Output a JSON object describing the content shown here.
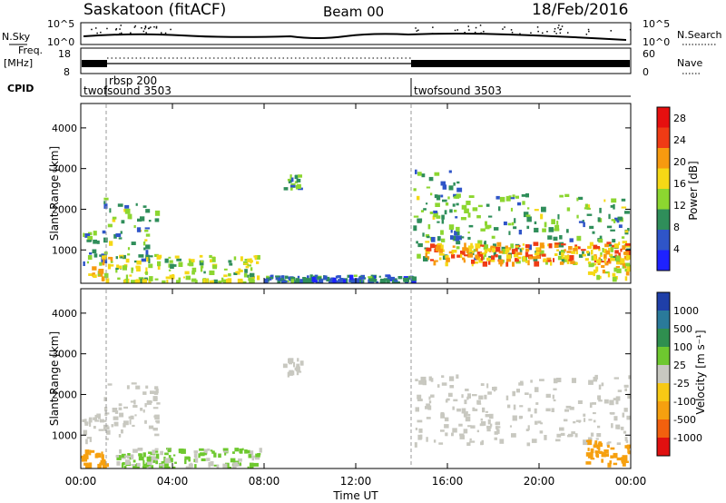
{
  "header": {
    "station": "Saskatoon (fitACF)",
    "beam": "Beam 00",
    "date": "18/Feb/2016"
  },
  "top_panels": {
    "nsky_label": "N.Sky",
    "nsky_ticks": [
      "10^5",
      "10^0"
    ],
    "nsearch_label": "N.Search",
    "freq_label_1": "Freq.",
    "freq_label_2": "[MHz]",
    "freq_ticks": [
      "18",
      "8"
    ],
    "nave_ticks": [
      "60",
      "0"
    ],
    "nave_label": "Nave",
    "cpid_label": "CPID",
    "cpid_entries": [
      {
        "name": "rbsp 200",
        "start_hour": 1.05
      },
      {
        "name": "twofsound 3503",
        "start_hour": 0.0
      },
      {
        "name": "twofsound 3503",
        "start_hour": 14.5
      }
    ]
  },
  "chart_data": [
    {
      "type": "heatmap",
      "panel": "power",
      "ylabel": "Slant Range [km]",
      "ylim": [
        180,
        4600
      ],
      "yticks": [
        "1000",
        "2000",
        "3000",
        "4000"
      ],
      "xlim": [
        0,
        24
      ],
      "colorbar_label": "Power [dB]",
      "colorbar_ticks": [
        "4",
        "8",
        "12",
        "16",
        "20",
        "24",
        "28"
      ],
      "colorbar_range": [
        0,
        30
      ],
      "colors": [
        "#1e22ff",
        "#2f55c8",
        "#2f8e5a",
        "#8cd630",
        "#f5d816",
        "#f79a0f",
        "#ef3b15",
        "#e60f0f"
      ],
      "echo_regions": [
        {
          "x": [
            0.0,
            1.0
          ],
          "y": [
            600,
            1500
          ],
          "value": 10
        },
        {
          "x": [
            0.9,
            3.3
          ],
          "y": [
            700,
            2300
          ],
          "value": 12
        },
        {
          "x": [
            0.3,
            1.3
          ],
          "y": [
            200,
            900
          ],
          "value": 18
        },
        {
          "x": [
            1.5,
            7.8
          ],
          "y": [
            200,
            900
          ],
          "value": 15
        },
        {
          "x": [
            8.8,
            9.6
          ],
          "y": [
            2500,
            2900
          ],
          "value": 10
        },
        {
          "x": [
            8.0,
            14.5
          ],
          "y": [
            200,
            400
          ],
          "value": 8
        },
        {
          "x": [
            14.5,
            16.5
          ],
          "y": [
            1200,
            3000
          ],
          "value": 9
        },
        {
          "x": [
            14.5,
            24.0
          ],
          "y": [
            700,
            2400
          ],
          "value": 12
        },
        {
          "x": [
            15.0,
            24.0
          ],
          "y": [
            700,
            1200
          ],
          "value": 22
        },
        {
          "x": [
            22.0,
            24.0
          ],
          "y": [
            300,
            900
          ],
          "value": 18
        }
      ]
    },
    {
      "type": "heatmap",
      "panel": "velocity",
      "ylabel": "Slant Range [km]",
      "xlabel": "Time UT",
      "ylim": [
        180,
        4600
      ],
      "yticks": [
        "1000",
        "2000",
        "3000",
        "4000"
      ],
      "xlim": [
        0,
        24
      ],
      "xticks": [
        "00:00",
        "04:00",
        "08:00",
        "12:00",
        "16:00",
        "20:00",
        "00:00"
      ],
      "colorbar_label": "Velocity [m s⁻¹]",
      "colorbar_ticks": [
        "1000",
        "500",
        "100",
        "25",
        "-25",
        "-100",
        "-500",
        "-1000"
      ],
      "colors": [
        "#1f3fa8",
        "#2a7a9a",
        "#2f8f4f",
        "#6ec82f",
        "#c8c8c0",
        "#f7c915",
        "#f6a00f",
        "#f2600e",
        "#e01010"
      ],
      "echo_regions": [
        {
          "x": [
            0.0,
            1.2
          ],
          "y": [
            900,
            1600
          ],
          "value": 0
        },
        {
          "x": [
            0.9,
            3.3
          ],
          "y": [
            1000,
            2300
          ],
          "value": 0
        },
        {
          "x": [
            0.0,
            1.2
          ],
          "y": [
            200,
            700
          ],
          "value": -300
        },
        {
          "x": [
            1.5,
            7.8
          ],
          "y": [
            200,
            700
          ],
          "value": 30
        },
        {
          "x": [
            8.8,
            9.6
          ],
          "y": [
            2500,
            2900
          ],
          "value": 0
        },
        {
          "x": [
            14.5,
            24.0
          ],
          "y": [
            800,
            2500
          ],
          "value": 0
        },
        {
          "x": [
            22.0,
            24.0
          ],
          "y": [
            300,
            900
          ],
          "value": -300
        }
      ]
    }
  ],
  "xaxis": {
    "ticks": [
      "00:00",
      "04:00",
      "08:00",
      "12:00",
      "16:00",
      "20:00",
      "00:00"
    ],
    "label": "Time UT"
  }
}
